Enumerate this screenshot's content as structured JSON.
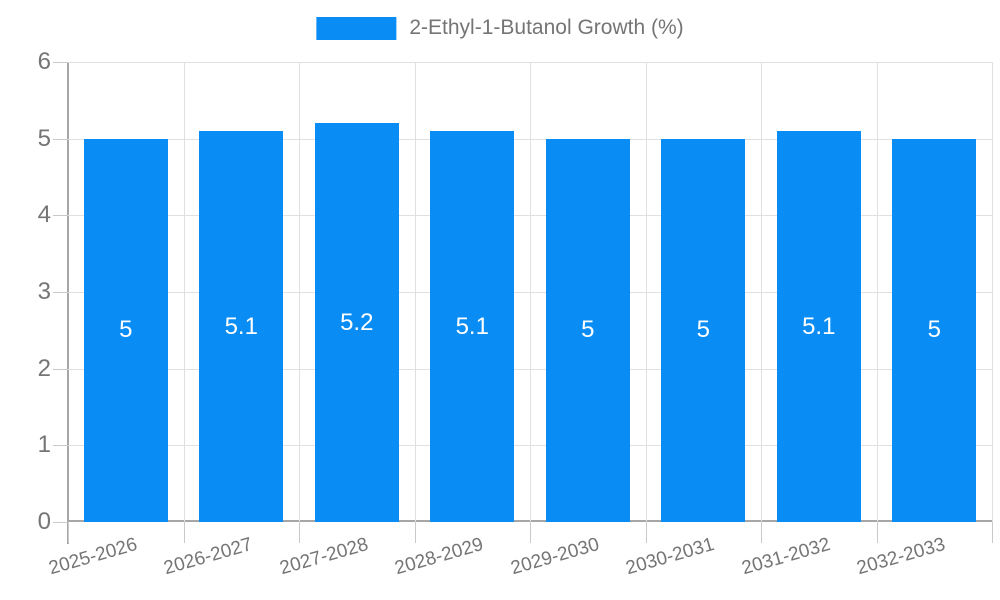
{
  "chart_data": {
    "type": "bar",
    "title": "",
    "legend": {
      "label": "2-Ethyl-1-Butanol Growth (%)",
      "position": "top"
    },
    "categories": [
      "2025-2026",
      "2026-2027",
      "2027-2028",
      "2028-2029",
      "2029-2030",
      "2030-2031",
      "2031-2032",
      "2032-2033"
    ],
    "series": [
      {
        "name": "2-Ethyl-1-Butanol Growth (%)",
        "values": [
          5,
          5.1,
          5.2,
          5.1,
          5,
          5,
          5.1,
          5
        ]
      }
    ],
    "data_labels": [
      "5",
      "5.1",
      "5.2",
      "5.1",
      "5",
      "5",
      "5.1",
      "5"
    ],
    "xlabel": "",
    "ylabel": "",
    "ylim": [
      0,
      6
    ],
    "ytick_step": 1,
    "ytick_labels": [
      "0",
      "1",
      "2",
      "3",
      "4",
      "5",
      "6"
    ],
    "grid": true,
    "colors": {
      "bar": "#0a8cf5",
      "axis_text": "#757575",
      "grid_line": "#e0e0e0",
      "axis_line": "#a6a6a6",
      "tick_mark": "#c9c9c9",
      "value_label": "#ffffff",
      "background": "#ffffff"
    }
  }
}
